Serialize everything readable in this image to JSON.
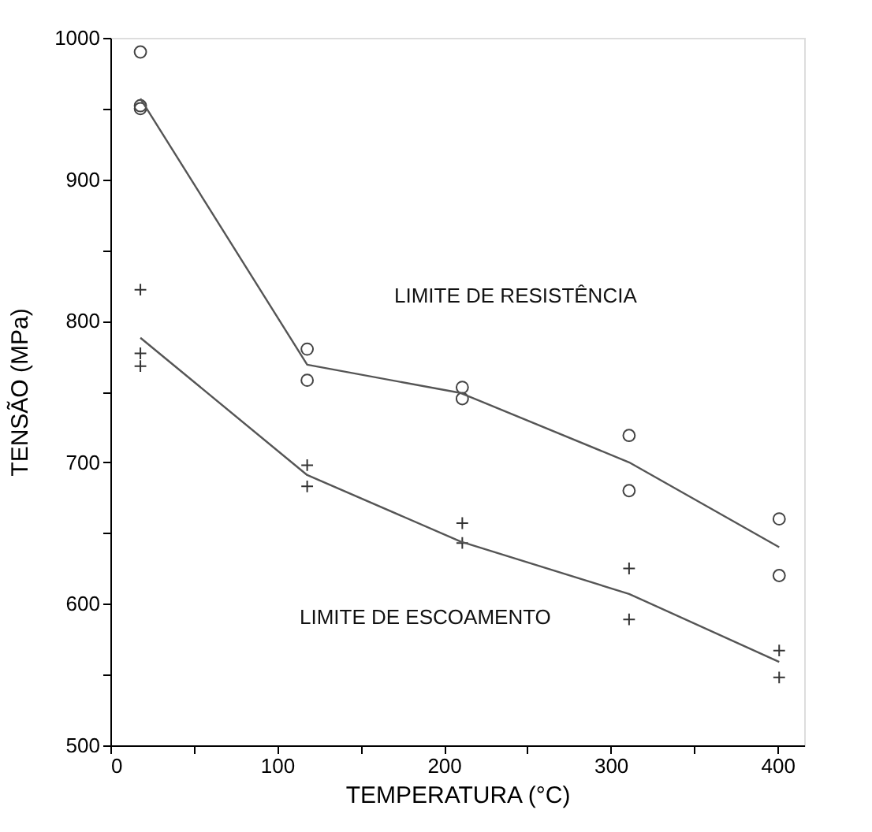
{
  "chart_data": {
    "type": "scatter",
    "xlabel": "TEMPERATURA (°C)",
    "ylabel": "TENSÃO (MPa)",
    "xlim": [
      0,
      416
    ],
    "ylim": [
      500,
      1000
    ],
    "xticks": [
      0,
      {
        "value": 50,
        "label": null
      },
      100,
      {
        "value": 150,
        "label": null
      },
      200,
      {
        "value": 250,
        "label": null
      },
      300,
      {
        "value": 350,
        "label": null
      },
      400
    ],
    "yticks": [
      500,
      {
        "value": 550,
        "label": null
      },
      600,
      {
        "value": 650,
        "label": null
      },
      700,
      {
        "value": 750,
        "label": null
      },
      800,
      {
        "value": 850,
        "label": null
      },
      900,
      {
        "value": 950,
        "label": null
      },
      1000
    ],
    "series": [
      {
        "marker": "circle",
        "color": "#444444",
        "x": [
          18,
          18,
          18,
          118,
          118,
          211,
          211,
          311,
          311,
          401,
          401
        ],
        "values": [
          990,
          952,
          950,
          780,
          758,
          753,
          745,
          719,
          680,
          660,
          620
        ]
      },
      {
        "marker": "cross",
        "color": "#333333",
        "x": [
          18,
          18,
          18,
          118,
          118,
          211,
          211,
          311,
          311,
          401,
          401
        ],
        "values": [
          822,
          777,
          768,
          698,
          683,
          657,
          643,
          625,
          589,
          567,
          548
        ]
      },
      {
        "type": "line",
        "marker": "none",
        "line_style": "solid",
        "color": "#555555",
        "x": [
          18,
          118,
          210,
          311,
          401
        ],
        "values": [
          957,
          769,
          749,
          700,
          640
        ]
      },
      {
        "type": "line",
        "marker": "none",
        "line_style": "solid",
        "color": "#555555",
        "x": [
          18,
          118,
          210,
          311,
          401
        ],
        "values": [
          788,
          691,
          644,
          607,
          559
        ]
      }
    ],
    "annotations": [
      "LIMITE DE RESISTÊNCIA",
      "LIMITE DE ESCOAMENTO"
    ]
  }
}
